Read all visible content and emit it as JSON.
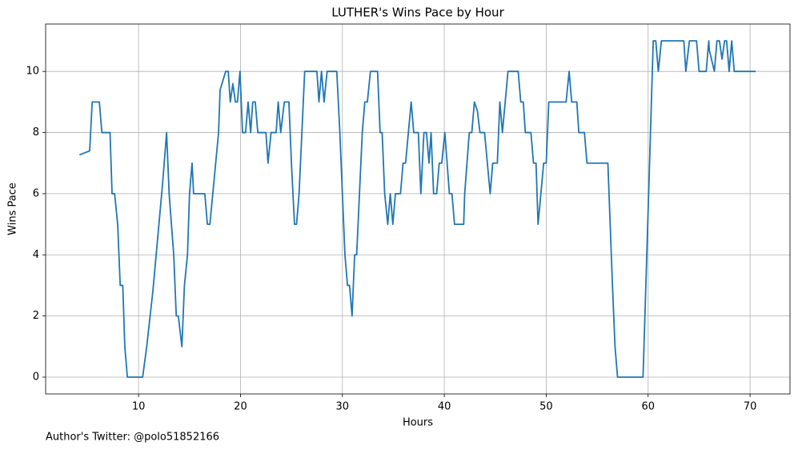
{
  "chart_data": {
    "type": "line",
    "title": "LUTHER's Wins Pace by Hour",
    "xlabel": "Hours",
    "ylabel": "Wins Pace",
    "annotation": "Author's Twitter: @polo51852166",
    "color": "#1f77b4",
    "grid": true,
    "x": [
      4.2,
      5.2,
      5.45,
      6.15,
      6.4,
      7.2,
      7.4,
      7.65,
      7.95,
      8.2,
      8.45,
      8.65,
      8.9,
      10.4,
      10.8,
      11.4,
      12.35,
      12.75,
      13.0,
      13.45,
      13.7,
      13.9,
      14.25,
      14.5,
      14.8,
      15.0,
      15.25,
      15.4,
      16.5,
      16.75,
      17.0,
      17.85,
      18.0,
      18.55,
      18.8,
      19.0,
      19.25,
      19.5,
      19.7,
      19.95,
      20.2,
      20.5,
      20.75,
      21.0,
      21.2,
      21.45,
      21.7,
      22.5,
      22.7,
      23.0,
      23.5,
      23.7,
      23.95,
      24.3,
      24.75,
      25.0,
      25.3,
      25.5,
      25.75,
      26.3,
      27.5,
      27.7,
      27.95,
      28.2,
      28.5,
      29.45,
      29.75,
      30.25,
      30.5,
      30.7,
      30.95,
      31.2,
      31.4,
      31.95,
      32.2,
      32.45,
      32.75,
      33.45,
      33.7,
      33.9,
      34.15,
      34.45,
      34.7,
      34.95,
      35.2,
      35.7,
      35.95,
      36.2,
      36.75,
      37.0,
      37.45,
      37.7,
      38.0,
      38.25,
      38.5,
      38.7,
      38.95,
      39.25,
      39.5,
      39.75,
      40.05,
      40.5,
      40.75,
      41.0,
      41.9,
      42.0,
      42.45,
      42.7,
      42.95,
      43.25,
      43.5,
      43.95,
      44.5,
      44.75,
      45.2,
      45.45,
      45.7,
      46.25,
      47.25,
      47.5,
      47.75,
      47.95,
      48.5,
      48.75,
      49.0,
      49.2,
      49.75,
      50.0,
      50.25,
      51.95,
      52.25,
      52.5,
      53.0,
      53.2,
      53.75,
      54.0,
      56.05,
      56.5,
      56.75,
      57.0,
      59.5,
      60.05,
      60.5,
      60.75,
      61.0,
      61.3,
      63.5,
      63.7,
      64.05,
      64.75,
      65.0,
      65.7,
      65.95,
      66.0,
      66.5,
      66.75,
      67.0,
      67.25,
      67.5,
      67.7,
      67.95,
      68.2,
      68.45,
      70.55
    ],
    "values": [
      7.27,
      7.4,
      9,
      9,
      8,
      8,
      6,
      6,
      5,
      3,
      3,
      1,
      0,
      0,
      1,
      2.8,
      6.3,
      8,
      6,
      4,
      2,
      2,
      1,
      3,
      4,
      6,
      7,
      6,
      6,
      5,
      5,
      8,
      9.4,
      10,
      10,
      9,
      9.6,
      9,
      9,
      10,
      8,
      8,
      9,
      8,
      9,
      9,
      8,
      8,
      7,
      8,
      8,
      9,
      8,
      9,
      9,
      7,
      5,
      5,
      6,
      10,
      10,
      9,
      10,
      9,
      10,
      10,
      8,
      4,
      3,
      3,
      2,
      4,
      4,
      8,
      9,
      9,
      10,
      10,
      8,
      8,
      6,
      5,
      6,
      5,
      6,
      6,
      7,
      7,
      9,
      8,
      8,
      6,
      8,
      8,
      7,
      8,
      6,
      6,
      7,
      7,
      8,
      6,
      6,
      5,
      5,
      6,
      8,
      8,
      9,
      8.7,
      8,
      8,
      6,
      7,
      7,
      9,
      8,
      10,
      10,
      9,
      9,
      8,
      8,
      7,
      7,
      5,
      7,
      7,
      9,
      9,
      10,
      9,
      9,
      8,
      8,
      7,
      7,
      3,
      1,
      0,
      0,
      6,
      11,
      11,
      10,
      11,
      11,
      10,
      11,
      11,
      10,
      10,
      11,
      10.7,
      10,
      11,
      11,
      10.4,
      11,
      11,
      10,
      11,
      10,
      10
    ],
    "xlim": [
      0.88,
      73.92
    ],
    "xticks": [
      10,
      20,
      30,
      40,
      50,
      60,
      70
    ],
    "ylim": [
      -0.55,
      11.55
    ],
    "yticks": [
      0,
      2,
      4,
      6,
      8,
      10
    ]
  }
}
